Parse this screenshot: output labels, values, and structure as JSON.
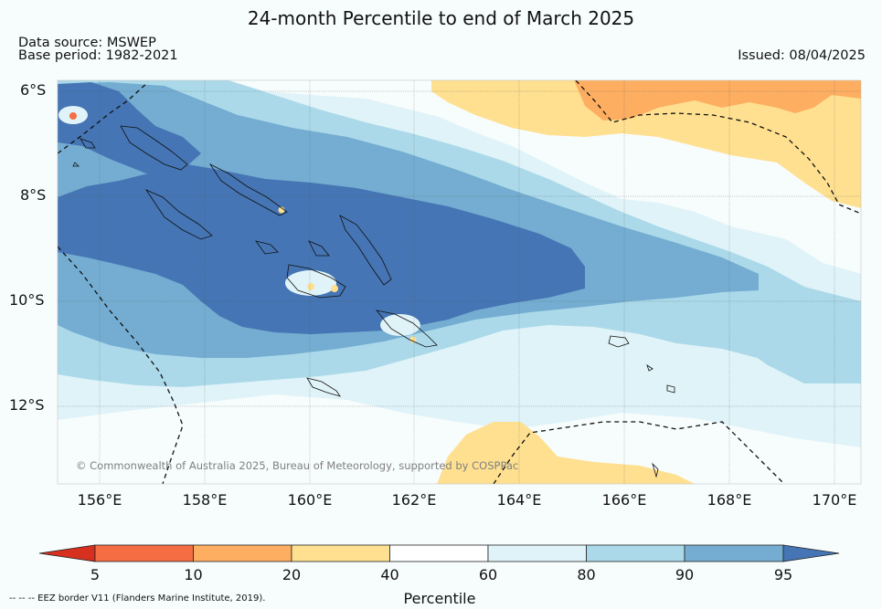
{
  "title": "24-month Percentile to end of March 2025",
  "data_source": "Data source: MSWEP",
  "base_period": "Base period: 1982-2021",
  "issued": "Issued: 08/04/2025",
  "latitude_labels": [
    "6°S",
    "8°S",
    "10°S",
    "12°S"
  ],
  "longitude_labels": [
    "156°E",
    "158°E",
    "160°E",
    "162°E",
    "164°E",
    "166°E",
    "168°E",
    "170°E"
  ],
  "credit": "© Commonwealth of Australia 2025, Bureau of Meteorology, supported by COSPPac",
  "eez_note": "--  --  -- EEZ border V11 (Flanders Marine Institute, 2019).",
  "colorbar": {
    "title": "Percentile",
    "ticks": [
      "5",
      "10",
      "20",
      "40",
      "60",
      "80",
      "90",
      "95"
    ],
    "colors": {
      "below_5": "#d7301f",
      "p5_10": "#f46d43",
      "p10_20": "#fdae61",
      "p20_40": "#fee090",
      "p40_60": "#ffffff",
      "p60_80": "#e0f3f8",
      "p80_90": "#abd9e9",
      "p90_95": "#74add1",
      "above_95": "#4575b4"
    }
  }
}
